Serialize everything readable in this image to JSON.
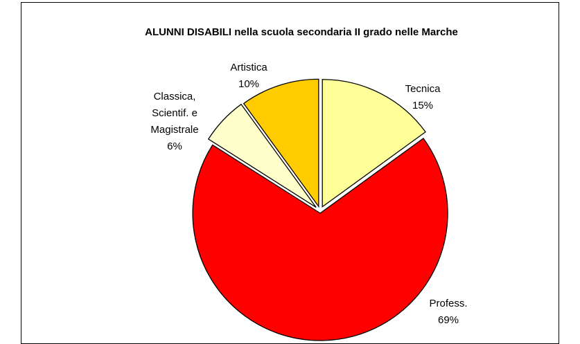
{
  "chart_data": {
    "type": "pie",
    "title": "ALUNNI DISABILI nella scuola secondaria II grado nelle Marche",
    "categories": [
      "Tecnica",
      "Profess.",
      "Classica, Scientif. e Magistrale",
      "Artistica"
    ],
    "values": [
      15,
      69,
      6,
      10
    ],
    "value_labels": [
      "15%",
      "69%",
      "6%",
      "10%"
    ],
    "colors": [
      "#FFFF99",
      "#FF0000",
      "#FFFFCC",
      "#FFCC00"
    ]
  }
}
